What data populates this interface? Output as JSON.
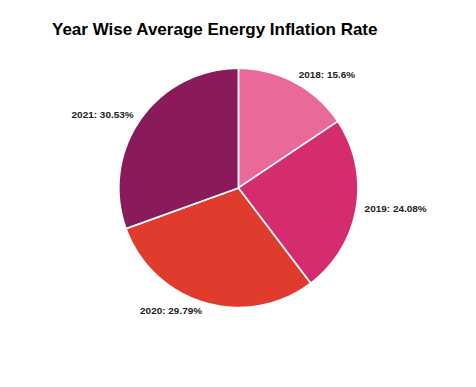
{
  "chart_data": {
    "type": "pie",
    "title": "Year Wise Average Energy Inflation Rate",
    "categories": [
      "2018",
      "2019",
      "2020",
      "2021"
    ],
    "values": [
      15.6,
      24.08,
      29.79,
      30.53
    ],
    "value_labels": [
      "2018: 15.6%",
      "2019: 24.08%",
      "2020: 29.79%",
      "2021: 30.53%"
    ],
    "colors": [
      "#e8699a",
      "#d42c6e",
      "#e03c2e",
      "#8b1a5a"
    ],
    "data_labels": true
  }
}
